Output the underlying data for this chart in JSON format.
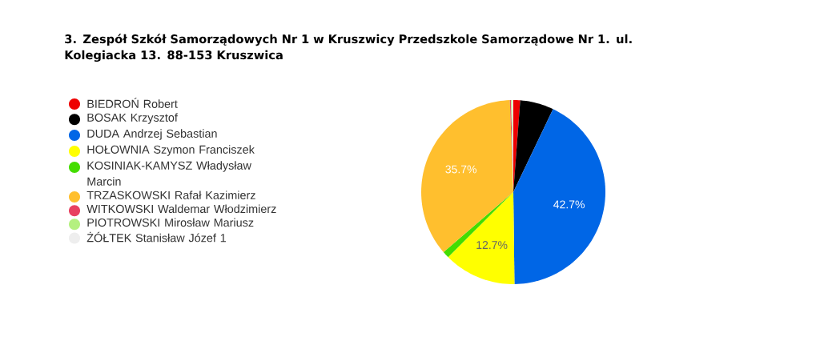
{
  "chart_data": {
    "type": "pie",
    "title": "3. Zespół Szkół Samorządowych Nr 1 w Kruszwicy Przedszkole Samorządowe Nr 1. ul. Kolegiacka 13. 88-153 Kruszwica",
    "categories": [
      "BIEDROŃ Robert",
      "BOSAK Krzysztof",
      "DUDA Andrzej Sebastian",
      "HOŁOWNIA Szymon Franciszek",
      "KOSINIAK-KAMYSZ Władysław Marcin",
      "TRZASKOWSKI Rafał Kazimierz",
      "WITKOWSKI Waldemar Włodzimierz",
      "PIOTROWSKI Mirosław Mariusz",
      "ŻÓŁTEK Stanisław Józef 1"
    ],
    "values": [
      1.2,
      5.9,
      42.7,
      12.7,
      1.2,
      35.7,
      0.2,
      0.2,
      0.2
    ],
    "colors": [
      "#ee0000",
      "#000000",
      "#0066e6",
      "#ffff00",
      "#44dd00",
      "#ffbf2e",
      "#e84060",
      "#b4f080",
      "#eeeeee"
    ],
    "value_labels": [
      null,
      null,
      "42.7%",
      "12.7%",
      null,
      "35.7%",
      null,
      null,
      null
    ],
    "legend": "left"
  }
}
